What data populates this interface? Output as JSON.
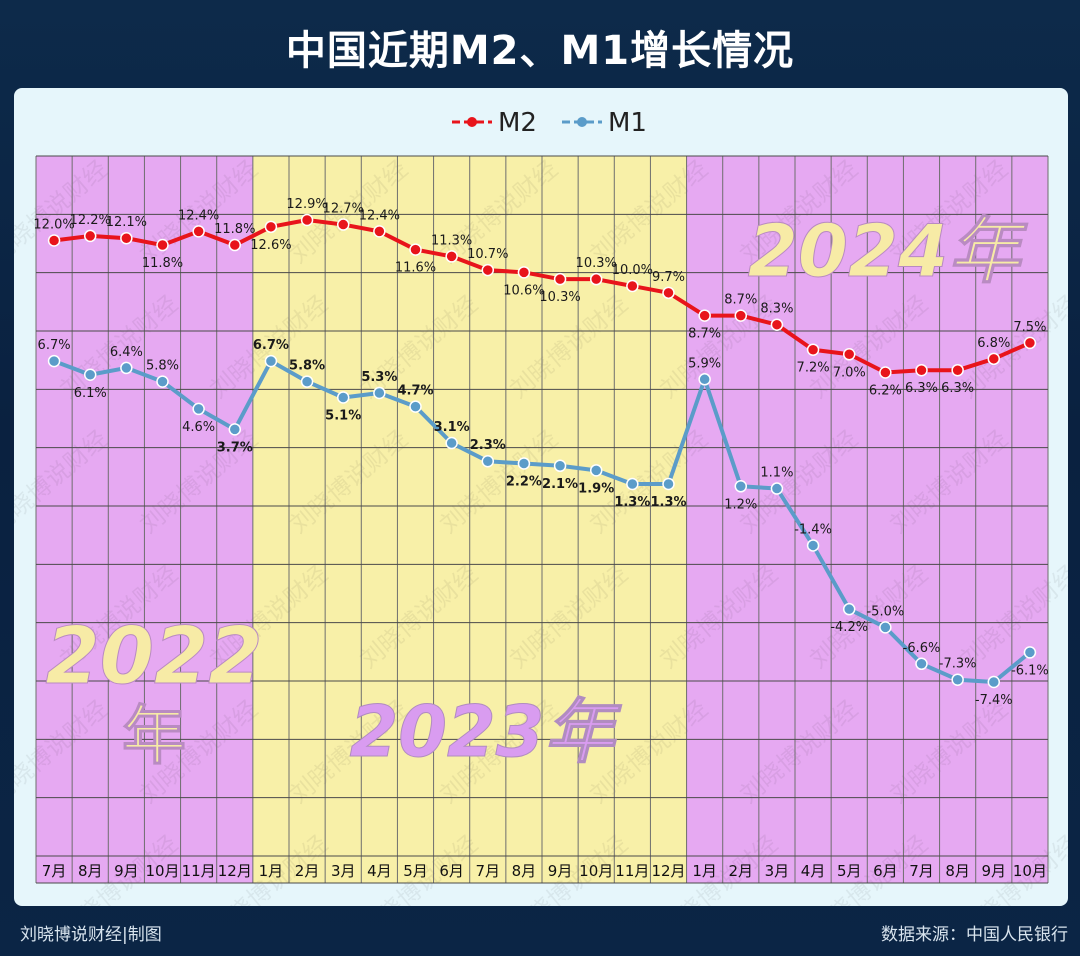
{
  "title": "中国近期M2、M1增长情况",
  "footer": {
    "credit": "刘晓博说财经|制图",
    "source": "数据来源：中国人民银行"
  },
  "watermark": "刘晓博说财经",
  "year_labels": {
    "y2022_line1": "2022",
    "y2022_line2": "年",
    "y2023": "2023年",
    "y2024": "2024年"
  },
  "colors": {
    "m2": "#e8141b",
    "m1": "#5b9cc9",
    "band_2022": "#e6a9f2",
    "band_2023": "#f8f0a8",
    "band_2024": "#e6a9f2",
    "year_text_light": "#f7eba6",
    "year_text_purple": "#d99cf0",
    "background": "#0b2545"
  },
  "chart_data": {
    "type": "line",
    "categories": [
      "7月",
      "8月",
      "9月",
      "10月",
      "11月",
      "12月",
      "1月",
      "2月",
      "3月",
      "4月",
      "5月",
      "6月",
      "7月",
      "8月",
      "9月",
      "10月",
      "11月",
      "12月",
      "1月",
      "2月",
      "3月",
      "4月",
      "5月",
      "6月",
      "7月",
      "8月",
      "9月",
      "10月"
    ],
    "series": [
      {
        "name": "M2",
        "values": [
          12.0,
          12.2,
          12.1,
          11.8,
          12.4,
          11.8,
          12.6,
          12.9,
          12.7,
          12.4,
          11.6,
          11.3,
          10.7,
          10.6,
          10.3,
          10.3,
          10.0,
          9.7,
          8.7,
          8.7,
          8.3,
          7.2,
          7.0,
          6.2,
          6.3,
          6.3,
          6.8,
          7.5
        ]
      },
      {
        "name": "M1",
        "values": [
          6.7,
          6.1,
          6.4,
          5.8,
          4.6,
          3.7,
          6.7,
          5.8,
          5.1,
          5.3,
          4.7,
          3.1,
          2.3,
          2.2,
          2.1,
          1.9,
          1.3,
          1.3,
          5.9,
          1.2,
          1.1,
          -1.4,
          -4.2,
          -5.0,
          -6.6,
          -7.3,
          -7.4,
          -6.1
        ]
      }
    ],
    "labels": {
      "M2": [
        "12.0%",
        "12.2%",
        "12.1%",
        "11.8%",
        "12.4%",
        "11.8%",
        "12.6%",
        "12.9%",
        "12.7%",
        "12.4%",
        "11.6%",
        "11.3%",
        "10.7%",
        "10.6%",
        "10.3%",
        "10.3%",
        "10.0%",
        "9.7%",
        "8.7%",
        "8.7%",
        "8.3%",
        "7.2%",
        "7.0%",
        "6.2%",
        "6.3%",
        "6.3%",
        "6.8%",
        "7.5%"
      ],
      "M1": [
        "6.7%",
        "6.1%",
        "6.4%",
        "5.8%",
        "4.6%",
        "3.7%",
        "6.7%",
        "5.8%",
        "5.1%",
        "5.3%",
        "4.7%",
        "3.1%",
        "2.3%",
        "2.2%",
        "2.1%",
        "1.9%",
        "1.3%",
        "1.3%",
        "5.9%",
        "1.2%",
        "1.1%",
        "-1.4%",
        "-4.2%",
        "-5.0%",
        "-6.6%",
        "-7.3%",
        "-7.4%",
        "-6.1%"
      ]
    },
    "periods": [
      {
        "year": "2022年",
        "first": 0,
        "last": 5
      },
      {
        "year": "2023年",
        "first": 6,
        "last": 17
      },
      {
        "year": "2024年",
        "first": 18,
        "last": 27
      }
    ],
    "grid": true,
    "legend": "top-center"
  }
}
